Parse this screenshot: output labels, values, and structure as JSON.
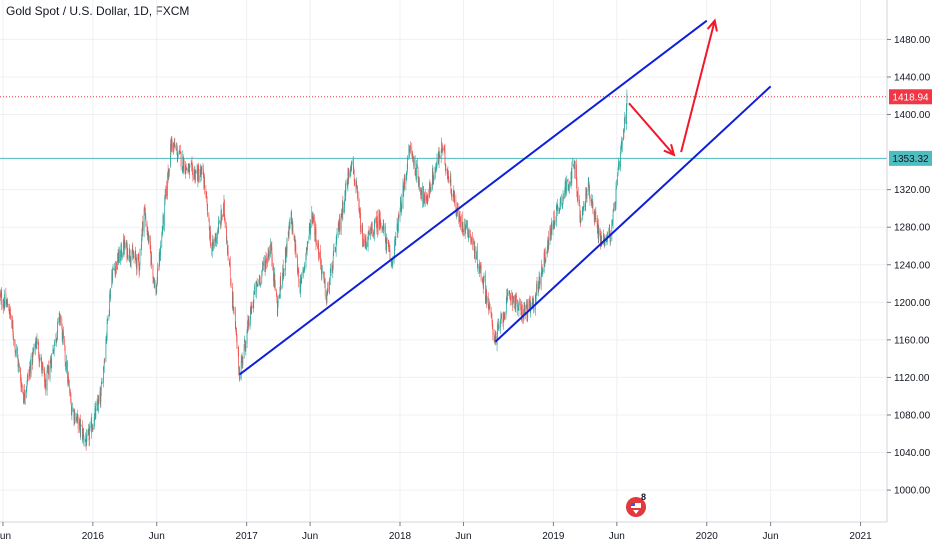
{
  "header": {
    "title": "Gold Spot / U.S. Dollar, 1D, FXCM"
  },
  "colors": {
    "up": "#26a69a",
    "down": "#ef5350",
    "trendline": "#0d1fd9",
    "arrow": "#f0182a",
    "price_line": "#f23645",
    "level_line": "#4dbdc0",
    "grid": "#eef0f4",
    "axis": "#787b86"
  },
  "badges": {
    "last_price": "1418.94",
    "level": "1353.32"
  },
  "logo": {
    "label": "8"
  },
  "chart_data": {
    "type": "candlestick",
    "title": "Gold Spot / U.S. Dollar, 1D, FXCM",
    "y_ticks": [
      1480,
      1440,
      1400,
      1320,
      1280,
      1240,
      1200,
      1160,
      1120,
      1080,
      1040,
      1000
    ],
    "y_tick_labels": [
      "1480.00",
      "1440.00",
      "1400.00",
      "1320.00",
      "1280.00",
      "1240.00",
      "1200.00",
      "1160.00",
      "1120.00",
      "1080.00",
      "1040.00",
      "1000.00"
    ],
    "ylim": [
      966,
      1522
    ],
    "xlim": [
      "2015-05-25",
      "2021-03-05"
    ],
    "x_ticks": [
      {
        "date": "2015-06-01",
        "label": "Jun"
      },
      {
        "date": "2016-01-01",
        "label": "2016"
      },
      {
        "date": "2016-06-01",
        "label": "Jun"
      },
      {
        "date": "2017-01-01",
        "label": "2017"
      },
      {
        "date": "2017-06-01",
        "label": "Jun"
      },
      {
        "date": "2018-01-01",
        "label": "2018"
      },
      {
        "date": "2018-06-01",
        "label": "Jun"
      },
      {
        "date": "2019-01-01",
        "label": "2019"
      },
      {
        "date": "2019-06-01",
        "label": "Jun"
      },
      {
        "date": "2020-01-01",
        "label": "2020"
      },
      {
        "date": "2020-06-01",
        "label": "Jun"
      },
      {
        "date": "2021-01-01",
        "label": "2021"
      }
    ],
    "price_path": [
      [
        "2015-05-25",
        1205
      ],
      [
        "2015-06-15",
        1195
      ],
      [
        "2015-07-20",
        1100
      ],
      [
        "2015-08-20",
        1160
      ],
      [
        "2015-09-10",
        1110
      ],
      [
        "2015-10-15",
        1185
      ],
      [
        "2015-11-10",
        1090
      ],
      [
        "2015-12-17",
        1050
      ],
      [
        "2016-01-20",
        1100
      ],
      [
        "2016-02-15",
        1230
      ],
      [
        "2016-03-15",
        1260
      ],
      [
        "2016-04-20",
        1240
      ],
      [
        "2016-05-02",
        1300
      ],
      [
        "2016-05-30",
        1210
      ],
      [
        "2016-06-24",
        1320
      ],
      [
        "2016-07-06",
        1370
      ],
      [
        "2016-08-15",
        1340
      ],
      [
        "2016-09-20",
        1335
      ],
      [
        "2016-10-10",
        1255
      ],
      [
        "2016-11-08",
        1300
      ],
      [
        "2016-12-15",
        1125
      ],
      [
        "2017-01-20",
        1210
      ],
      [
        "2017-02-27",
        1260
      ],
      [
        "2017-03-15",
        1195
      ],
      [
        "2017-04-17",
        1290
      ],
      [
        "2017-05-09",
        1215
      ],
      [
        "2017-06-06",
        1295
      ],
      [
        "2017-07-10",
        1205
      ],
      [
        "2017-09-08",
        1355
      ],
      [
        "2017-10-06",
        1260
      ],
      [
        "2017-11-15",
        1290
      ],
      [
        "2017-12-12",
        1240
      ],
      [
        "2018-01-25",
        1365
      ],
      [
        "2018-03-01",
        1305
      ],
      [
        "2018-04-11",
        1365
      ],
      [
        "2018-05-20",
        1290
      ],
      [
        "2018-06-15",
        1275
      ],
      [
        "2018-07-20",
        1220
      ],
      [
        "2018-08-16",
        1160
      ],
      [
        "2018-09-20",
        1210
      ],
      [
        "2018-10-15",
        1190
      ],
      [
        "2018-11-13",
        1195
      ],
      [
        "2019-01-03",
        1290
      ],
      [
        "2019-02-20",
        1345
      ],
      [
        "2019-03-07",
        1285
      ],
      [
        "2019-03-25",
        1325
      ],
      [
        "2019-04-23",
        1265
      ],
      [
        "2019-05-20",
        1275
      ],
      [
        "2019-06-05",
        1340
      ],
      [
        "2019-06-20",
        1390
      ],
      [
        "2019-06-25",
        1418.94
      ]
    ],
    "trendlines": [
      {
        "from": [
          "2016-12-15",
          1123
        ],
        "to": [
          "2020-01-01",
          1500
        ]
      },
      {
        "from": [
          "2018-08-16",
          1158
        ],
        "to": [
          "2020-06-01",
          1430
        ]
      }
    ],
    "arrows": [
      {
        "from": [
          "2019-06-30",
          1412
        ],
        "to": [
          "2019-10-15",
          1357
        ]
      },
      {
        "from": [
          "2019-11-01",
          1360
        ],
        "to": [
          "2020-01-20",
          1500
        ]
      }
    ],
    "levels": {
      "last_price": 1418.94,
      "horizontal": 1353.32
    }
  }
}
